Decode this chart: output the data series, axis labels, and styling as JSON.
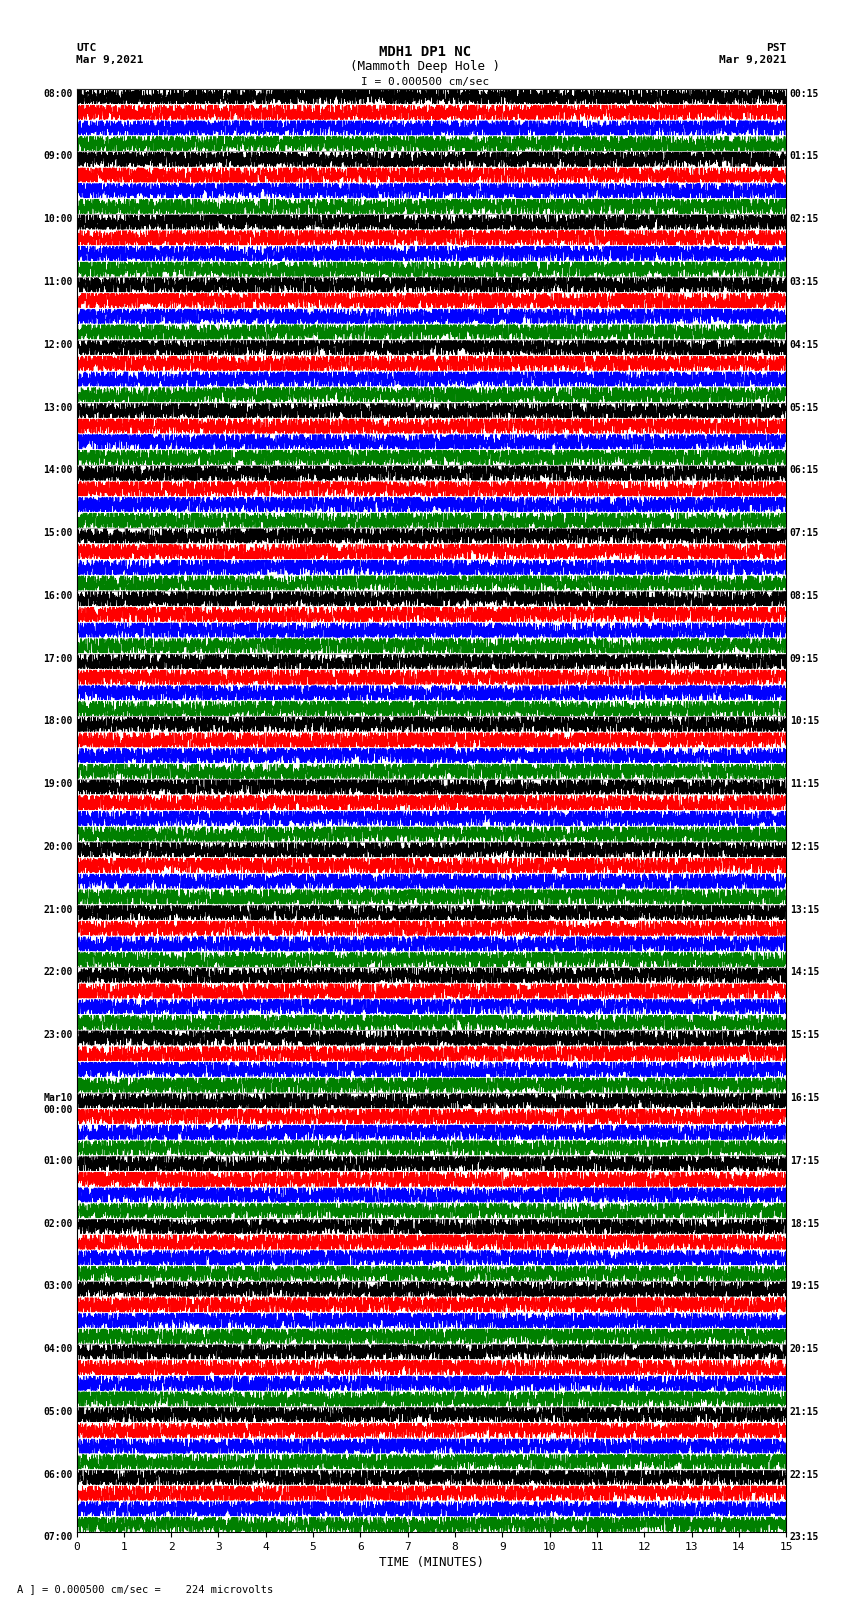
{
  "title_line1": "MDH1 DP1 NC",
  "title_line2": "(Mammoth Deep Hole )",
  "title_line3": "I = 0.000500 cm/sec",
  "left_header": "UTC\nMar 9,2021",
  "right_header": "PST\nMar 9,2021",
  "xlabel": "TIME (MINUTES)",
  "footer": "A ] = 0.000500 cm/sec =    224 microvolts",
  "time_minutes": 15,
  "num_rows": 92,
  "colors_cycle": [
    "black",
    "red",
    "blue",
    "green"
  ],
  "background_color": "white",
  "major_labels_utc": [
    "08:00",
    "09:00",
    "10:00",
    "11:00",
    "12:00",
    "13:00",
    "14:00",
    "15:00",
    "16:00",
    "17:00",
    "18:00",
    "19:00",
    "20:00",
    "21:00",
    "22:00",
    "23:00",
    "Mar10\n00:00",
    "01:00",
    "02:00",
    "03:00",
    "04:00",
    "05:00",
    "06:00",
    "07:00"
  ],
  "major_labels_pst": [
    "00:15",
    "01:15",
    "02:15",
    "03:15",
    "04:15",
    "05:15",
    "06:15",
    "07:15",
    "08:15",
    "09:15",
    "10:15",
    "11:15",
    "12:15",
    "13:15",
    "14:15",
    "15:15",
    "16:15",
    "17:15",
    "18:15",
    "19:15",
    "20:15",
    "21:15",
    "22:15",
    "23:15"
  ],
  "xticks": [
    0,
    1,
    2,
    3,
    4,
    5,
    6,
    7,
    8,
    9,
    10,
    11,
    12,
    13,
    14,
    15
  ],
  "rows_per_hour": 4,
  "time_pts": 4500,
  "lw": 0.55,
  "noise_base": 0.35,
  "spike_prob": 0.25,
  "spike_amp_min": 0.6,
  "spike_amp_max": 2.0
}
